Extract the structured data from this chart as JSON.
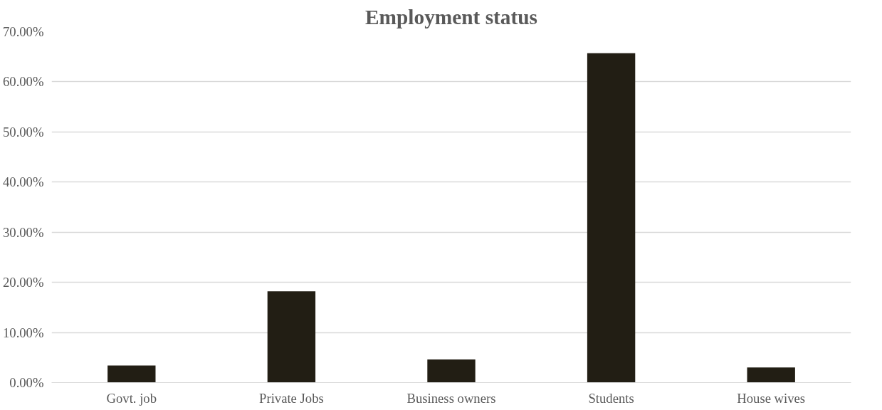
{
  "chart_data": {
    "type": "bar",
    "title": "Employment status",
    "categories": [
      "Govt. job",
      "Private Jobs",
      "Business owners",
      "Students",
      "House wives"
    ],
    "values": [
      0.034,
      0.182,
      0.046,
      0.657,
      0.03
    ],
    "color": "#221e14",
    "ylim": [
      0,
      0.7
    ],
    "yticks": [
      {
        "value": 0,
        "label": "0.00%"
      },
      {
        "value": 0.1,
        "label": "10.00%"
      },
      {
        "value": 0.2,
        "label": "20.00%"
      },
      {
        "value": 0.3,
        "label": "30.00%"
      },
      {
        "value": 0.4,
        "label": "40.00%"
      },
      {
        "value": 0.5,
        "label": "50.00%"
      },
      {
        "value": 0.6,
        "label": "60.00%"
      },
      {
        "value": 0.7,
        "label": "70.00%"
      }
    ],
    "grid": "y"
  }
}
